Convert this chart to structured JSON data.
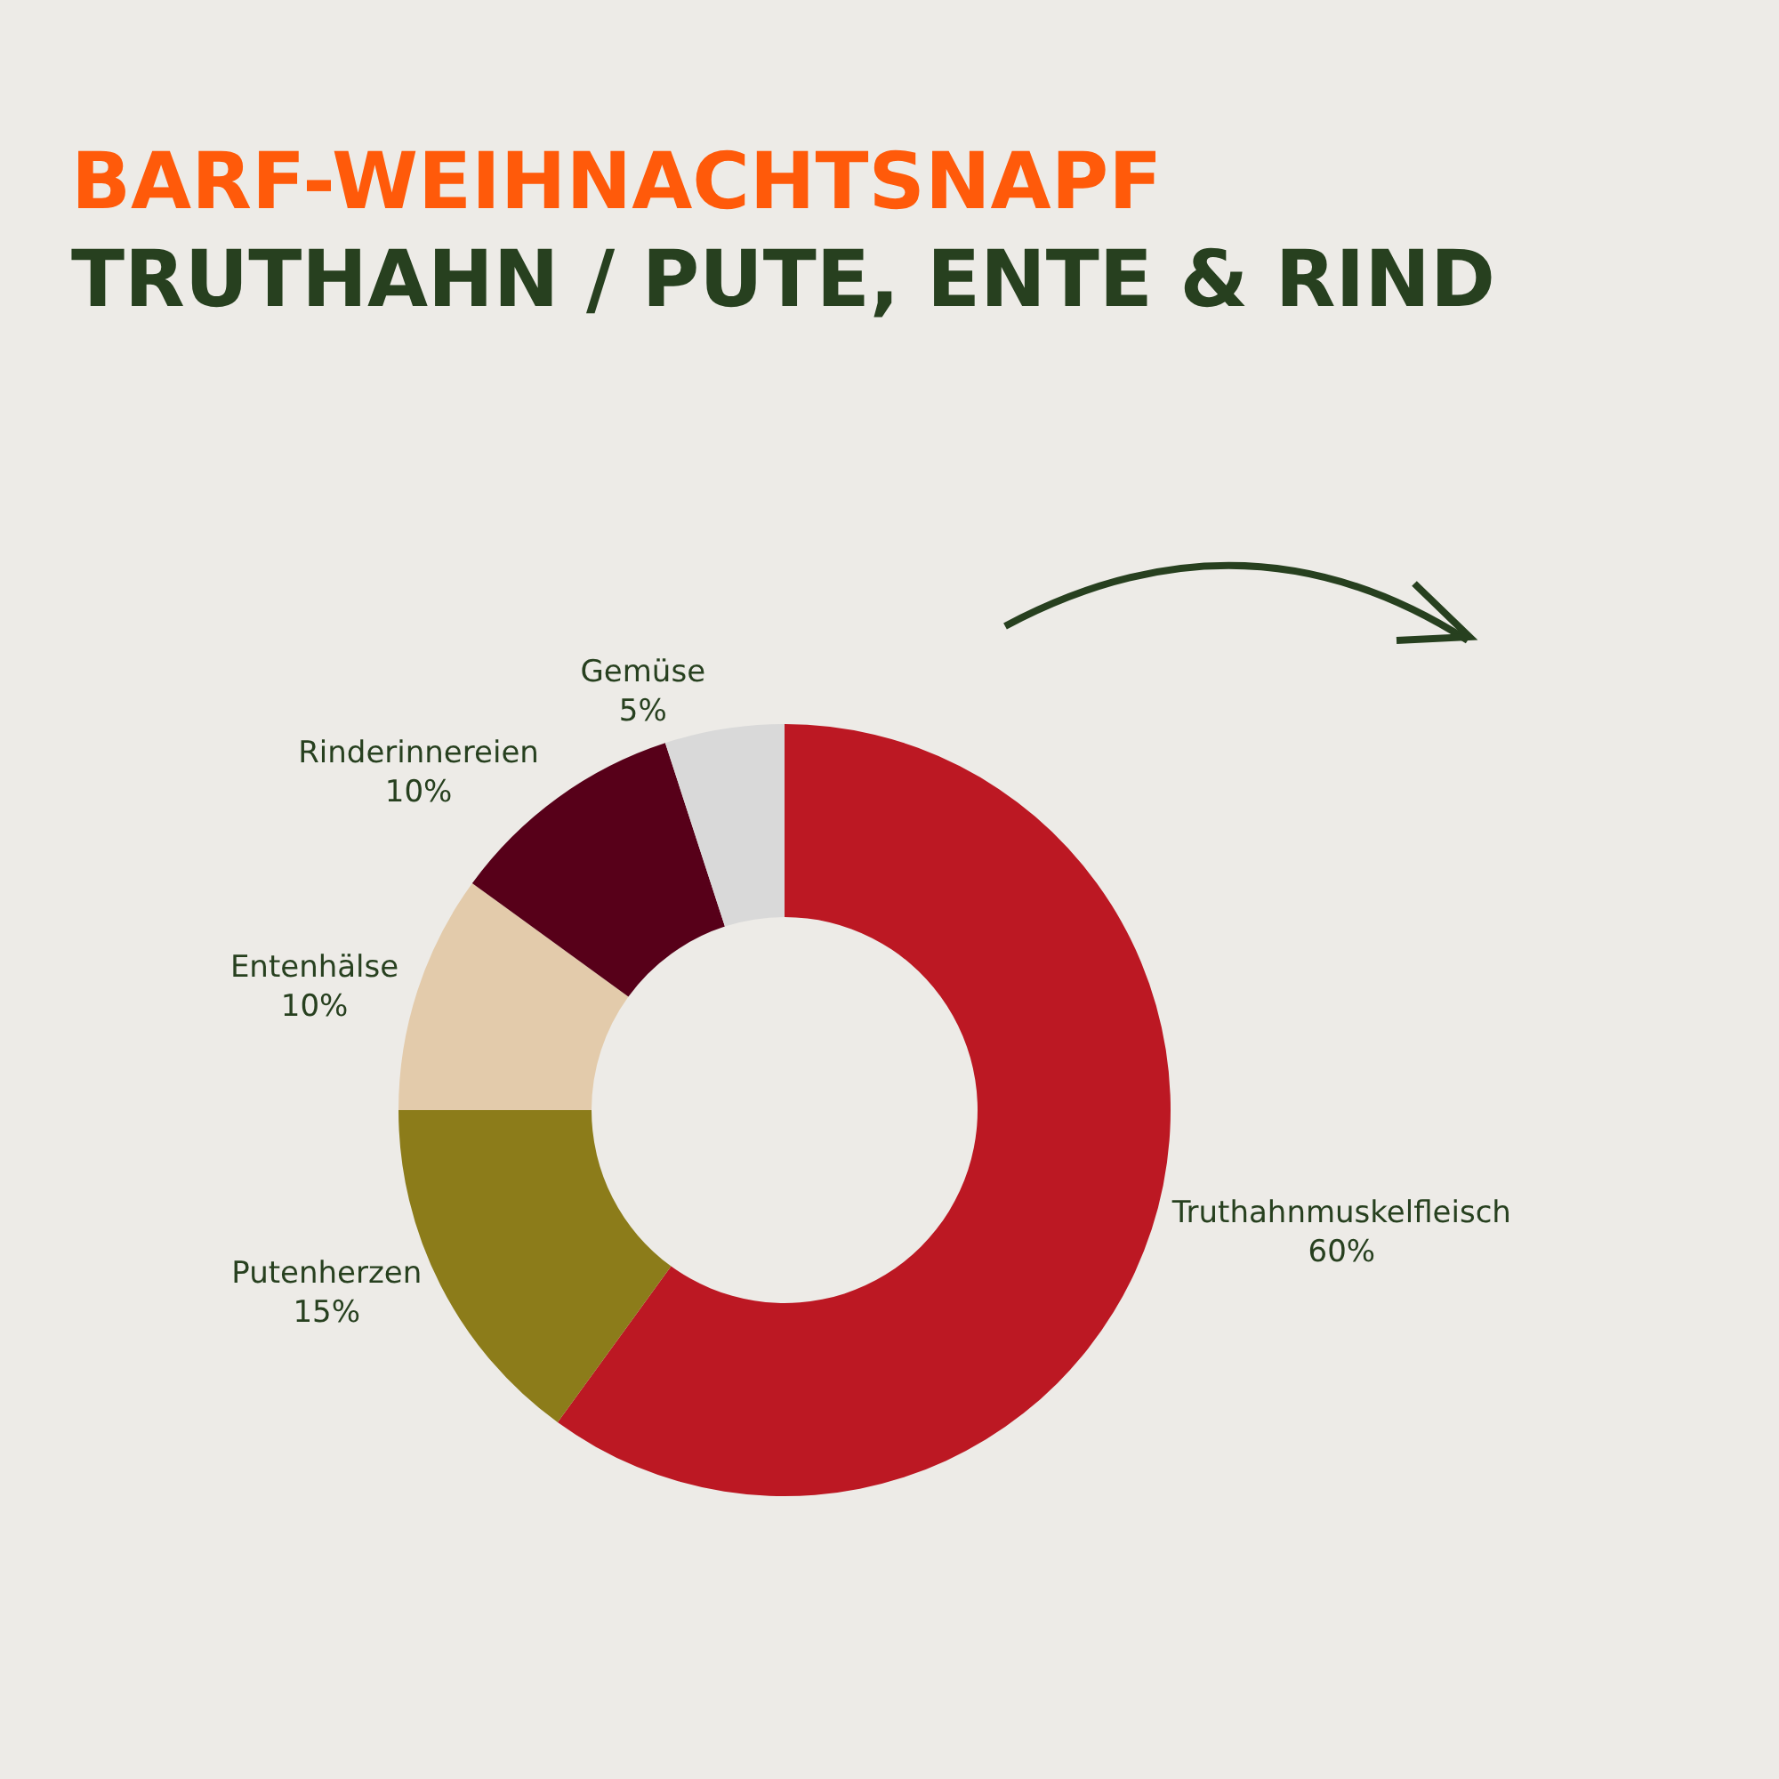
{
  "chart_data": {
    "type": "donut",
    "title": "BARF-WEIHNACHTSNAPF",
    "subtitle": "TRUTHAHN / PUTE, ENTE & RIND",
    "categories": [
      "Truthahnmuskelfleisch",
      "Putenherzen",
      "Entenhälse",
      "Rinderinnereien",
      "Gemüse"
    ],
    "values": [
      60,
      15,
      10,
      10,
      5
    ],
    "colors": [
      "#bc1823",
      "#8c7c1a",
      "#e3cbab",
      "#570019",
      "#d9d9d9"
    ],
    "value_labels": [
      "60%",
      "15%",
      "10%",
      "10%",
      "5%"
    ],
    "legend": false
  }
}
